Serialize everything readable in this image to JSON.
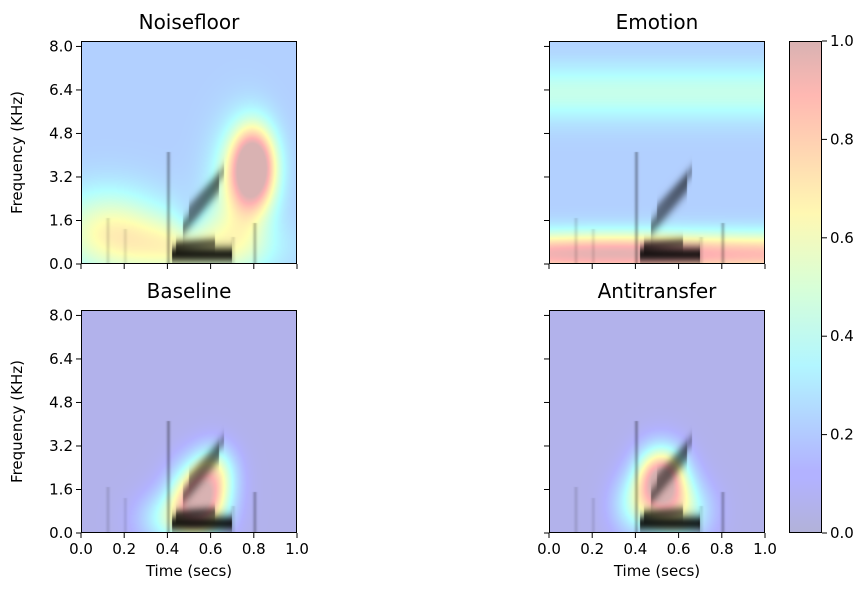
{
  "chart_data": [
    {
      "type": "heatmap",
      "title": "Noisefloor",
      "xlabel": "",
      "ylabel": "Frequency (KHz)",
      "xlim": [
        0.0,
        1.0
      ],
      "ylim": [
        0.0,
        8.2
      ],
      "xticks": [
        "0.0",
        "0.2",
        "0.4",
        "0.6",
        "0.8",
        "1.0"
      ],
      "yticks": [
        "0.0",
        "1.6",
        "3.2",
        "4.8",
        "6.4",
        "8.0"
      ],
      "show_xticklabels": false,
      "show_yticklabels": true,
      "background": 0.22,
      "blobs": [
        {
          "t": 0.8,
          "f": 3.6,
          "st": 0.07,
          "sf": 1.0,
          "a": 0.88
        },
        {
          "t": 0.74,
          "f": 2.6,
          "st": 0.1,
          "sf": 1.6,
          "a": 0.35
        },
        {
          "t": 0.12,
          "f": 1.2,
          "st": 0.18,
          "sf": 1.1,
          "a": 0.38
        },
        {
          "t": 0.45,
          "f": 0.6,
          "st": 0.2,
          "sf": 0.9,
          "a": 0.25
        },
        {
          "t": 0.62,
          "f": 0.6,
          "st": 0.25,
          "sf": 0.7,
          "a": 0.15
        },
        {
          "t": 0.5,
          "f": 1.5,
          "st": 0.05,
          "sf": 0.6,
          "a": -0.1
        }
      ]
    },
    {
      "type": "heatmap",
      "title": "Emotion",
      "xlabel": "",
      "ylabel": "",
      "xlim": [
        0.0,
        1.0
      ],
      "ylim": [
        0.0,
        8.2
      ],
      "xticks": [
        "0.0",
        "0.2",
        "0.4",
        "0.6",
        "0.8",
        "1.0"
      ],
      "yticks": [
        "0.0",
        "1.6",
        "3.2",
        "4.8",
        "6.4",
        "8.0"
      ],
      "show_xticklabels": false,
      "show_yticklabels": false,
      "background": 0.22,
      "bands": [
        {
          "f": 6.3,
          "sf": 0.75,
          "a": 0.22
        },
        {
          "f": 0.35,
          "sf": 0.55,
          "a": 0.62
        }
      ],
      "blobs": [
        {
          "t": 0.3,
          "f": 0.5,
          "st": 0.3,
          "sf": 0.5,
          "a": 0.12
        }
      ]
    },
    {
      "type": "heatmap",
      "title": "Baseline",
      "xlabel": "Time (secs)",
      "ylabel": "Frequency (KHz)",
      "xlim": [
        0.0,
        1.0
      ],
      "ylim": [
        0.0,
        8.2
      ],
      "xticks": [
        "0.0",
        "0.2",
        "0.4",
        "0.6",
        "0.8",
        "1.0"
      ],
      "yticks": [
        "0.0",
        "1.6",
        "3.2",
        "4.8",
        "6.4",
        "8.0"
      ],
      "show_xticklabels": true,
      "show_yticklabels": true,
      "background": 0.06,
      "blobs": [
        {
          "t": 0.55,
          "f": 1.2,
          "st": 0.09,
          "sf": 0.9,
          "a": 0.92
        },
        {
          "t": 0.62,
          "f": 2.3,
          "st": 0.07,
          "sf": 0.7,
          "a": 0.35
        },
        {
          "t": 0.4,
          "f": 0.5,
          "st": 0.1,
          "sf": 0.7,
          "a": 0.3
        }
      ]
    },
    {
      "type": "heatmap",
      "title": "Antitransfer",
      "xlabel": "Time (secs)",
      "ylabel": "",
      "xlim": [
        0.0,
        1.0
      ],
      "ylim": [
        0.0,
        8.2
      ],
      "xticks": [
        "0.0",
        "0.2",
        "0.4",
        "0.6",
        "0.8",
        "1.0"
      ],
      "yticks": [
        "0.0",
        "1.6",
        "3.2",
        "4.8",
        "6.4",
        "8.0"
      ],
      "show_xticklabels": true,
      "show_yticklabels": false,
      "background": 0.06,
      "blobs": [
        {
          "t": 0.52,
          "f": 2.0,
          "st": 0.08,
          "sf": 0.8,
          "a": 0.92
        },
        {
          "t": 0.6,
          "f": 0.8,
          "st": 0.1,
          "sf": 0.8,
          "a": 0.45
        },
        {
          "t": 0.4,
          "f": 1.0,
          "st": 0.08,
          "sf": 0.8,
          "a": 0.3
        }
      ]
    }
  ],
  "colorbar": {
    "min": 0.0,
    "max": 1.0,
    "ticks": [
      "0.0",
      "0.2",
      "0.4",
      "0.6",
      "0.8",
      "1.0"
    ],
    "colormap": "jet",
    "alpha": 0.3
  },
  "spectrogram": {
    "color": "#000000",
    "harmonics": [
      {
        "t0": 0.42,
        "t1": 0.7,
        "f0": 0.35,
        "f1": 0.35,
        "w": 0.22,
        "a": 0.85
      },
      {
        "t0": 0.44,
        "t1": 0.62,
        "f0": 0.7,
        "f1": 0.8,
        "w": 0.15,
        "a": 0.45
      },
      {
        "t0": 0.47,
        "t1": 0.64,
        "f0": 1.3,
        "f1": 2.9,
        "w": 0.25,
        "a": 0.45
      },
      {
        "t0": 0.5,
        "t1": 0.66,
        "f0": 2.0,
        "f1": 3.4,
        "w": 0.2,
        "a": 0.3
      }
    ],
    "bursts": [
      {
        "t": 0.405,
        "f0": 0.0,
        "f1": 4.1,
        "a": 0.3
      },
      {
        "t": 0.805,
        "f0": 0.0,
        "f1": 1.5,
        "a": 0.25
      },
      {
        "t": 0.125,
        "f0": 0.0,
        "f1": 1.7,
        "a": 0.12
      },
      {
        "t": 0.205,
        "f0": 0.0,
        "f1": 1.3,
        "a": 0.1
      },
      {
        "t": 0.705,
        "f0": 0.0,
        "f1": 1.0,
        "a": 0.12
      }
    ]
  }
}
